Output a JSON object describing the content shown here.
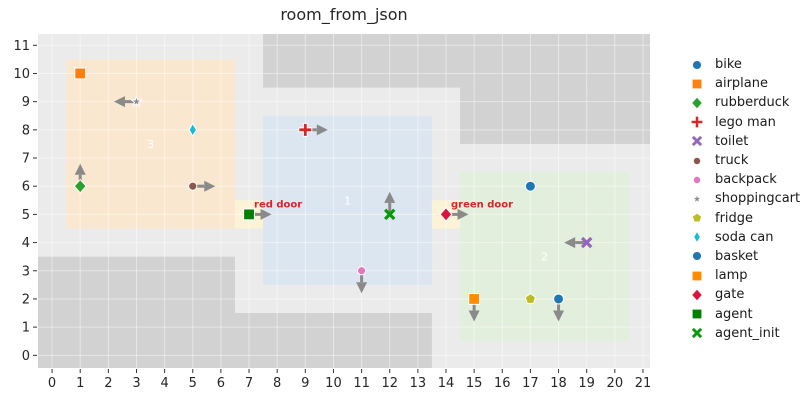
{
  "title": "room_from_json",
  "chart_data": {
    "type": "scatter",
    "title": "room_from_json",
    "xlim": [
      -0.5,
      21.25
    ],
    "ylim": [
      -0.45,
      11.4
    ],
    "x_ticks": [
      0,
      1,
      2,
      3,
      4,
      5,
      6,
      7,
      8,
      9,
      10,
      11,
      12,
      13,
      14,
      15,
      16,
      17,
      18,
      19,
      20,
      21
    ],
    "y_ticks": [
      0,
      1,
      2,
      3,
      4,
      5,
      6,
      7,
      8,
      9,
      10,
      11
    ],
    "grid": true,
    "legend_position": "right",
    "colors": {
      "figure_bg": "#ffffff",
      "plot_bg": "#ebebeb",
      "wall": "#d2d2d2",
      "grid_line": "rgba(255,255,255,0.45)",
      "tick_label": "#262626",
      "title": "#262626",
      "door_label": "#d62728",
      "region_label": "#ffffff",
      "door_highlight": "#fcf3d6",
      "arrow": "#8a8a8a",
      "tick_mark": "#333333"
    },
    "walls": [
      {
        "x0": 7.5,
        "y0": 9.5,
        "x1": 21.25,
        "y1": 11.4
      },
      {
        "x0": 14.5,
        "y0": 7.5,
        "x1": 21.25,
        "y1": 9.5
      },
      {
        "x0": -0.5,
        "y0": -0.45,
        "x1": 6.5,
        "y1": 3.5
      },
      {
        "x0": 6.5,
        "y0": -0.45,
        "x1": 13.5,
        "y1": 1.5
      }
    ],
    "regions": [
      {
        "id": "1",
        "x0": 7.5,
        "y0": 2.5,
        "x1": 13.5,
        "y1": 8.5,
        "label_x": 10.5,
        "label_y": 5.5,
        "color": "#dce6f0"
      },
      {
        "id": "2",
        "x0": 14.5,
        "y0": 0.5,
        "x1": 20.5,
        "y1": 6.5,
        "label_x": 17.5,
        "label_y": 3.5,
        "color": "#e3efdd"
      },
      {
        "id": "3",
        "x0": 0.5,
        "y0": 4.5,
        "x1": 6.5,
        "y1": 10.5,
        "label_x": 3.5,
        "label_y": 7.5,
        "color": "#fae7d0"
      }
    ],
    "doors": [
      {
        "name": "red door",
        "x": 7,
        "y": 5,
        "highlight": {
          "x0": 6.5,
          "y0": 4.5,
          "x1": 7.5,
          "y1": 5.5
        }
      },
      {
        "name": "green door",
        "x": 14,
        "y": 5,
        "highlight": {
          "x0": 13.5,
          "y0": 4.5,
          "x1": 14.5,
          "y1": 5.5
        }
      }
    ],
    "arrow": {
      "length_units": 0.8
    },
    "objects": [
      {
        "name": "bike",
        "x": 17,
        "y": 6,
        "marker": "circle",
        "color": "#1f77b4",
        "dir": null
      },
      {
        "name": "airplane",
        "x": 1,
        "y": 10,
        "marker": "square",
        "color": "#ff7f0e",
        "dir": null
      },
      {
        "name": "rubberduck",
        "x": 1,
        "y": 6,
        "marker": "diamond",
        "color": "#2ca02c",
        "dir": "up"
      },
      {
        "name": "lego man",
        "x": 9,
        "y": 8,
        "marker": "plus",
        "color": "#d62728",
        "dir": "right"
      },
      {
        "name": "toilet",
        "x": 19,
        "y": 4,
        "marker": "x",
        "color": "#9467bd",
        "dir": "left"
      },
      {
        "name": "truck",
        "x": 5,
        "y": 6,
        "marker": "circle_small",
        "color": "#8c564b",
        "dir": "right"
      },
      {
        "name": "backpack",
        "x": 11,
        "y": 3,
        "marker": "circle_small",
        "color": "#e377c2",
        "dir": "down"
      },
      {
        "name": "shoppingcart",
        "x": 3,
        "y": 9,
        "marker": "star",
        "color": "#8c8c8c",
        "dir": "left"
      },
      {
        "name": "fridge",
        "x": 17,
        "y": 2,
        "marker": "pentagon",
        "color": "#bcbd22",
        "dir": null
      },
      {
        "name": "soda can",
        "x": 5,
        "y": 8,
        "marker": "thin_diamond",
        "color": "#17becf",
        "dir": null
      },
      {
        "name": "basket",
        "x": 18,
        "y": 2,
        "marker": "circle",
        "color": "#1f77b4",
        "dir": "down"
      },
      {
        "name": "lamp",
        "x": 15,
        "y": 2,
        "marker": "square",
        "color": "#ff8c00",
        "dir": "down"
      },
      {
        "name": "gate",
        "x": 14,
        "y": 5,
        "marker": "diamond",
        "color": "#dc143c",
        "dir": "right"
      },
      {
        "name": "agent",
        "x": 7,
        "y": 5,
        "marker": "square",
        "color": "#008000",
        "dir": "right"
      },
      {
        "name": "agent_init",
        "x": 12,
        "y": 5,
        "marker": "x",
        "color": "#089908",
        "dir": "up"
      }
    ]
  }
}
